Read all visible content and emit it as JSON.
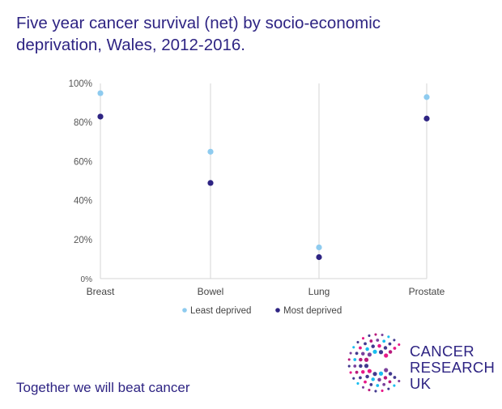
{
  "title": "Five year cancer survival (net) by socio-economic deprivation, Wales, 2012-2016.",
  "tagline": "Together we will beat cancer",
  "brand": {
    "line1": "CANCER",
    "line2": "RESEARCH",
    "line3": "UK"
  },
  "colors": {
    "least": "#8ecbef",
    "most": "#2e2483",
    "text": "#2e2483",
    "axis": "#555555",
    "grid": "#d6d6d6"
  },
  "chart_data": {
    "type": "scatter",
    "categories": [
      "Breast",
      "Bowel",
      "Lung",
      "Prostate"
    ],
    "series": [
      {
        "name": "Least deprived",
        "values": [
          95,
          65,
          16,
          93
        ]
      },
      {
        "name": "Most deprived",
        "values": [
          83,
          49,
          11,
          82
        ]
      }
    ],
    "yticks": [
      "0%",
      "20%",
      "40%",
      "60%",
      "80%",
      "100%"
    ],
    "ylim": [
      0,
      100
    ],
    "grid": true,
    "legend": "bottom-center"
  }
}
